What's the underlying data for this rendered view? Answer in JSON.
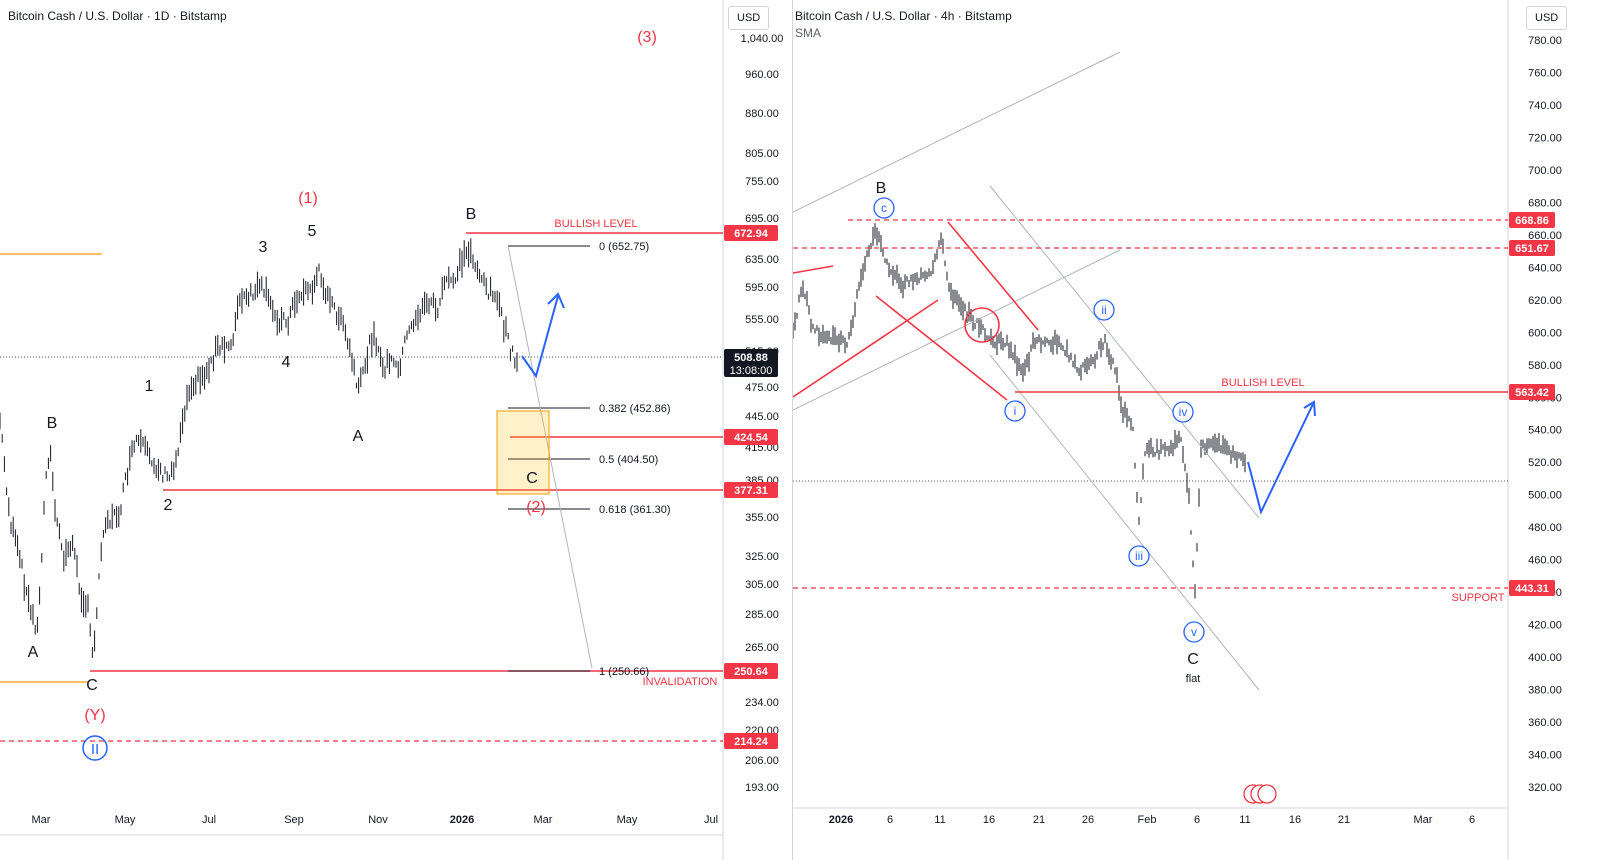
{
  "colors": {
    "red": "#f23645",
    "blue": "#2962ff",
    "black": "#131722",
    "orange": "#ff9800",
    "gray": "#b2b5be"
  },
  "left": {
    "title": "Bitcoin Cash / U.S. Dollar · 1D · Bitstamp",
    "currency": "USD",
    "y_ticks": [
      "1,040.00",
      "960.00",
      "880.00",
      "805.00",
      "755.00",
      "695.00",
      "635.00",
      "595.00",
      "555.00",
      "515.00",
      "475.00",
      "445.00",
      "415.00",
      "385.00",
      "355.00",
      "325.00",
      "305.00",
      "285.00",
      "265.00",
      "234.00",
      "220.00",
      "206.00",
      "193.00"
    ],
    "x_ticks": [
      "Mar",
      "May",
      "Jul",
      "Sep",
      "Nov",
      "2026",
      "Mar",
      "May",
      "Jul"
    ],
    "price_tags": [
      {
        "value": "672.94",
        "color": "#f23645"
      },
      {
        "value": "424.54",
        "color": "#f23645"
      },
      {
        "value": "377.31",
        "color": "#f23645"
      },
      {
        "value": "250.64",
        "color": "#f23645"
      },
      {
        "value": "214.24",
        "color": "#f23645"
      }
    ],
    "last_price": {
      "value": "508.88",
      "timer": "13:08:00"
    },
    "fib_labels": [
      "0 (652.75)",
      "0.382 (452.86)",
      "0.5 (404.50)",
      "0.618 (361.30)",
      "1 (250.66)"
    ],
    "annotations": {
      "bullish_level": "BULLISH LEVEL",
      "invalidation": "INVALIDATION",
      "wave_3_red": "(3)",
      "wave_1_red": "(1)",
      "wave_2_red": "(2)",
      "wave_y_red": "(Y)",
      "wave_ii_blue": "II",
      "w1": "1",
      "w2": "2",
      "w3": "3",
      "w4": "4",
      "w5": "5",
      "wa_left": "A",
      "wb_left": "B",
      "wc_left": "C",
      "wa_mid": "A",
      "wb_mid": "B",
      "wc_box": "C"
    }
  },
  "right": {
    "title": "Bitcoin Cash / U.S. Dollar · 4h · Bitstamp",
    "indicator": "SMA",
    "currency": "USD",
    "y_ticks": [
      "780.00",
      "760.00",
      "740.00",
      "720.00",
      "700.00",
      "680.00",
      "660.00",
      "640.00",
      "620.00",
      "600.00",
      "580.00",
      "560.00",
      "540.00",
      "520.00",
      "500.00",
      "480.00",
      "460.00",
      "440.00",
      "420.00",
      "400.00",
      "380.00",
      "360.00",
      "340.00",
      "320.00"
    ],
    "x_ticks": [
      "2026",
      "6",
      "11",
      "16",
      "21",
      "26",
      "Feb",
      "6",
      "11",
      "16",
      "21",
      "Mar",
      "6"
    ],
    "price_tags": [
      {
        "value": "668.86",
        "color": "#f23645"
      },
      {
        "value": "651.67",
        "color": "#f23645"
      },
      {
        "value": "563.42",
        "color": "#f23645"
      },
      {
        "value": "443.31",
        "color": "#f23645"
      }
    ],
    "annotations": {
      "bullish_level": "BULLISH LEVEL",
      "support": "SUPPORT",
      "wb": "B",
      "wc": "C",
      "flat": "flat",
      "c_small": "c",
      "i": "i",
      "ii": "ii",
      "iii": "iii",
      "iv": "iv",
      "v": "v"
    }
  }
}
